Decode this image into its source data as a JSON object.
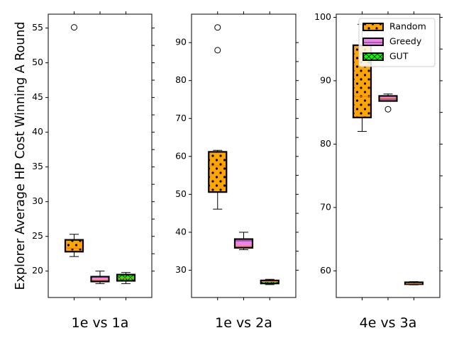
{
  "chart_data": {
    "type": "box",
    "ylabel": "Explorer Average HP Cost Winning A Round",
    "legend": {
      "placement": "top-right of third panel",
      "entries": [
        {
          "label": "Random",
          "color": "#ffa500",
          "hatch": "dots"
        },
        {
          "label": "Greedy",
          "color": "#ee82ee",
          "hatch": "lines"
        },
        {
          "label": "GUT",
          "color": "#00ff00",
          "hatch": "cross"
        }
      ]
    },
    "panels": [
      {
        "category": "1e vs 1a",
        "ylim": [
          16.2,
          57
        ],
        "yticks": [
          20,
          25,
          30,
          35,
          40,
          45,
          50,
          55
        ],
        "series": [
          {
            "name": "Random",
            "whisker_low": 22.1,
            "q1": 22.8,
            "median": 23.3,
            "q3": 24.5,
            "whisker_high": 25.3,
            "outliers": [
              55.1
            ]
          },
          {
            "name": "Greedy",
            "whisker_low": 18.2,
            "q1": 18.5,
            "median": 18.7,
            "q3": 19.2,
            "whisker_high": 20.0,
            "outliers": []
          },
          {
            "name": "GUT",
            "whisker_low": 18.2,
            "q1": 18.6,
            "median": 19.0,
            "q3": 19.5,
            "whisker_high": 19.8,
            "outliers": []
          }
        ]
      },
      {
        "category": "1e vs 2a",
        "ylim": [
          22.8,
          97.5
        ],
        "yticks": [
          30,
          40,
          50,
          60,
          70,
          80,
          90
        ],
        "series": [
          {
            "name": "Random",
            "whisker_low": 46.1,
            "q1": 50.6,
            "median": 57.5,
            "q3": 61.2,
            "whisker_high": 61.6,
            "outliers": [
              88.0,
              94.0
            ]
          },
          {
            "name": "Greedy",
            "whisker_low": 35.4,
            "q1": 35.9,
            "median": 36.3,
            "q3": 38.2,
            "whisker_high": 40.0,
            "outliers": []
          },
          {
            "name": "GUT",
            "whisker_low": 26.2,
            "q1": 26.5,
            "median": 27.0,
            "q3": 27.3,
            "whisker_high": 27.6,
            "outliers": []
          }
        ]
      },
      {
        "category": "4e vs 3a",
        "ylim": [
          55.8,
          100.5
        ],
        "yticks": [
          60,
          70,
          80,
          90,
          100
        ],
        "series": [
          {
            "name": "Random",
            "whisker_low": 82.0,
            "q1": 84.2,
            "median": 87.5,
            "q3": 95.6,
            "whisker_high": 98.9,
            "outliers": []
          },
          {
            "name": "Greedy",
            "whisker_low": 86.8,
            "q1": 86.8,
            "median": 87.2,
            "q3": 87.6,
            "whisker_high": 87.9,
            "outliers": [
              85.5
            ]
          },
          {
            "name": "GUT",
            "whisker_low": 57.8,
            "q1": 57.9,
            "median": 58.0,
            "q3": 58.2,
            "whisker_high": 58.3,
            "outliers": []
          }
        ]
      }
    ]
  }
}
